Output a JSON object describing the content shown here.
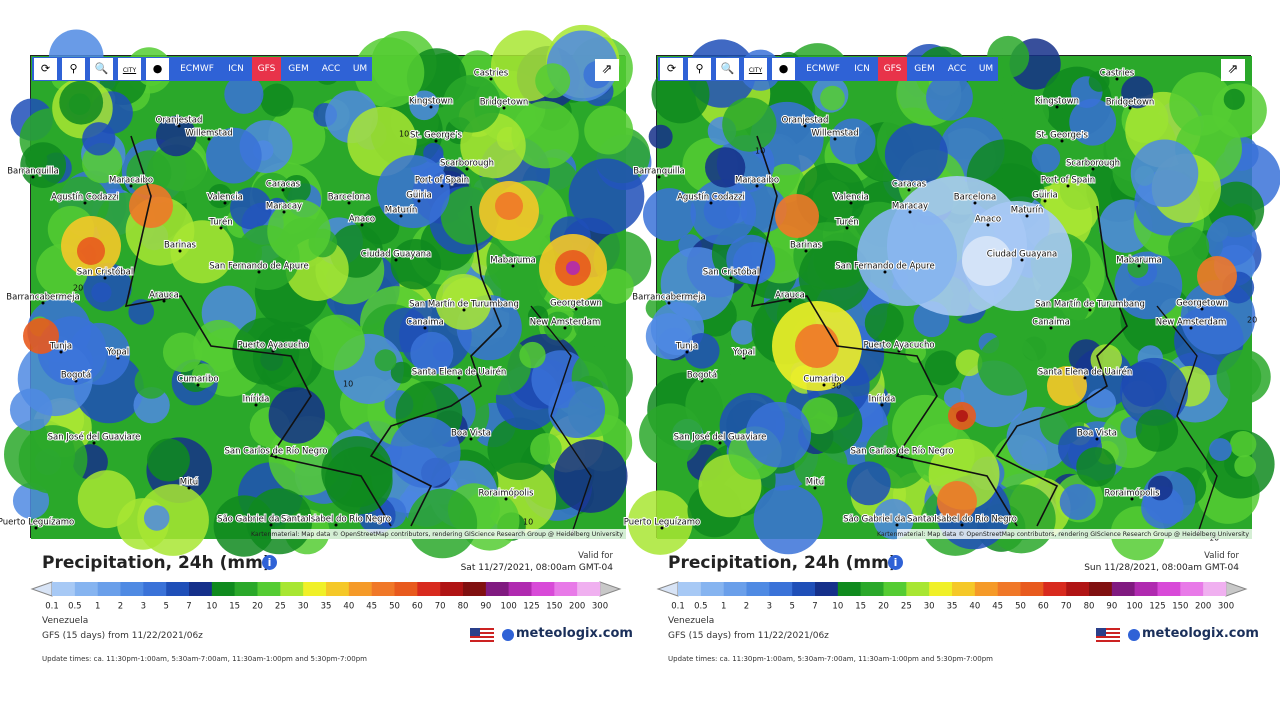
{
  "map_labels": [
    "Castries",
    "Kingstown",
    "Bridgetown",
    "Oranjestad",
    "Willemstad",
    "St. George's",
    "Scarborough",
    "Barranquilla",
    "Maracaibo",
    "Port of Spain",
    "Agustín Codazzi",
    "Valencia",
    "Caracas",
    "Barcelona",
    "Güiria",
    "Maracay",
    "Maturín",
    "Turén",
    "Anaco",
    "Barinas",
    "Ciudad Guayana",
    "Mabaruma",
    "San Fernando de Apure",
    "San Cristóbal",
    "Georgetown",
    "San Martín de Turumbang",
    "Barrancabermeja",
    "Arauca",
    "New Amsterdam",
    "Canaima",
    "Tunja",
    "Yopal",
    "Puerto Ayacucho",
    "Bogotá",
    "Santa Elena de Uairén",
    "Cumaribo",
    "Inírida",
    "San José del Guaviare",
    "Boa Vista",
    "San Carlos de Río Negro",
    "Roraimópolis",
    "Mitú",
    "Puerto Leguízamo",
    "São Gabriel da Cachoeira",
    "Santa Isabel do Rio Negro"
  ],
  "attribution": "Kartenmaterial: Map data © OpenStreetMap contributors, rendering GIScience Research Group @ Heidelberg University",
  "legend": {
    "values": [
      0.1,
      0.5,
      1,
      2,
      3,
      5,
      7,
      10,
      15,
      20,
      25,
      30,
      35,
      40,
      45,
      50,
      60,
      70,
      80,
      90,
      100,
      125,
      150,
      200,
      300
    ],
    "colors": [
      "#a7c9f5",
      "#86b4f0",
      "#6a9fea",
      "#4f8ae3",
      "#3a72d8",
      "#1f4fb8",
      "#15308a",
      "#0f8a1e",
      "#2aa82a",
      "#55cc33",
      "#a8e632",
      "#f0f028",
      "#f5c828",
      "#f59a28",
      "#f07828",
      "#e85a1e",
      "#d82a1e",
      "#b01414",
      "#801010",
      "#801a80",
      "#b02ab0",
      "#d84ad8",
      "#e87ae8",
      "#f0b0f0"
    ]
  },
  "panels": [
    {
      "city_icon": "CITY",
      "models": [
        "ECMWF",
        "ICN",
        "GFS",
        "GEM",
        "ACC",
        "UM"
      ],
      "active_model": "GFS",
      "contours": [
        10,
        10,
        20,
        10
      ],
      "title": "Precipitation, 24h (mm)",
      "valid_label": "Valid for",
      "valid_time": "Sat 11/27/2021, 08:00am GMT-04",
      "region": "Venezuela",
      "model_run": "GFS (15 days) from 11/22/2021/06z",
      "brand": "meteologix.com",
      "update_times": "Update times: ca. 11:30pm-1:00am, 5:30am-7:00am, 11:30am-1:00pm and 5:30pm-7:00pm"
    },
    {
      "city_icon": "CITY",
      "models": [
        "ECMWF",
        "ICN",
        "GFS",
        "GEM",
        "ACC",
        "UM"
      ],
      "active_model": "GFS",
      "contours": [
        10,
        30,
        20,
        10
      ],
      "title": "Precipitation, 24h (mm)",
      "valid_label": "Valid for",
      "valid_time": "Sun 11/28/2021, 08:00am GMT-04",
      "region": "Venezuela",
      "model_run": "GFS (15 days) from 11/22/2021/06z",
      "brand": "meteologix.com",
      "update_times": "Update times: ca. 11:30pm-1:00am, 5:30am-7:00am, 11:30am-1:00pm and 5:30pm-7:00pm"
    }
  ]
}
